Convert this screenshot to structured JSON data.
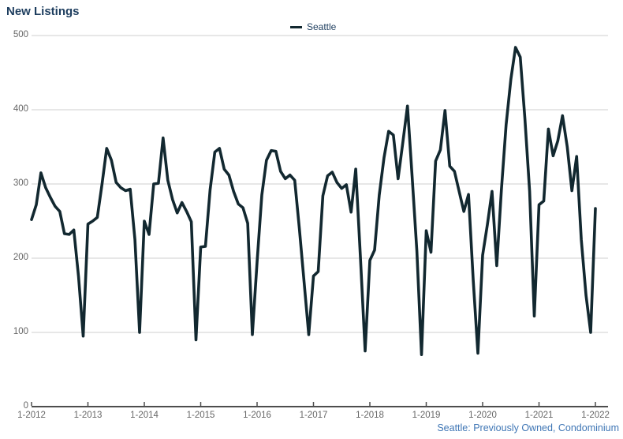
{
  "page": {
    "title": "New Listings",
    "footnote": "Seattle: Previously Owned, Condominium"
  },
  "legend": {
    "label": "Seattle"
  },
  "colors": {
    "line": "#122830",
    "title_text": "#1d3d5e",
    "footnote_text": "#3f76b5",
    "grid": "#cfcfcf",
    "axis": "#4d4d4d",
    "tick_label": "#666666"
  },
  "chart_data": {
    "type": "line",
    "title": "New Listings",
    "legend_entries": [
      "Seattle"
    ],
    "legend_position": "top-center",
    "grid": "horizontal-only",
    "ylim": [
      0,
      500
    ],
    "y_ticks": [
      0,
      100,
      200,
      300,
      400,
      500
    ],
    "x_tick_labels": [
      "1-2012",
      "1-2013",
      "1-2014",
      "1-2015",
      "1-2016",
      "1-2017",
      "1-2018",
      "1-2019",
      "1-2020",
      "1-2021",
      "1-2022"
    ],
    "x_start": "2012-01",
    "x_end": "2022-01",
    "frequency": "monthly",
    "annotation": "Seattle: Previously Owned, Condominium",
    "series": [
      {
        "name": "Seattle",
        "color": "#122830",
        "values": [
          252,
          272,
          315,
          295,
          282,
          270,
          263,
          233,
          232,
          238,
          175,
          95,
          246,
          250,
          255,
          300,
          348,
          332,
          302,
          295,
          291,
          293,
          225,
          100,
          250,
          232,
          300,
          301,
          362,
          305,
          279,
          261,
          275,
          263,
          249,
          90,
          215,
          216,
          292,
          343,
          348,
          320,
          312,
          290,
          273,
          268,
          247,
          97,
          195,
          285,
          332,
          345,
          344,
          317,
          307,
          312,
          305,
          240,
          168,
          97,
          176,
          182,
          284,
          311,
          316,
          302,
          294,
          299,
          262,
          320,
          200,
          75,
          197,
          211,
          285,
          335,
          371,
          366,
          307,
          355,
          405,
          310,
          210,
          70,
          237,
          208,
          331,
          346,
          399,
          324,
          317,
          290,
          263,
          286,
          170,
          72,
          204,
          245,
          290,
          190,
          292,
          380,
          441,
          484,
          471,
          388,
          290,
          122,
          272,
          277,
          374,
          338,
          358,
          392,
          350,
          291,
          337,
          225,
          150,
          100,
          267
        ]
      }
    ]
  }
}
